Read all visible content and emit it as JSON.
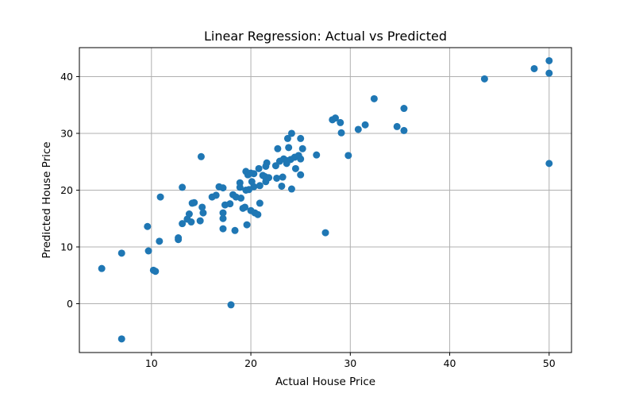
{
  "chart_data": {
    "type": "scatter",
    "title": "Linear Regression: Actual vs Predicted",
    "xlabel": "Actual House Price",
    "ylabel": "Predicted House Price",
    "xlim": [
      2.75,
      52.25
    ],
    "ylim": [
      -8.6,
      45.1
    ],
    "xticks": [
      10,
      20,
      30,
      40,
      50
    ],
    "yticks": [
      0,
      10,
      20,
      30,
      40
    ],
    "grid": true,
    "color": "#1f77b4",
    "points": [
      [
        5.0,
        6.2
      ],
      [
        7.0,
        8.9
      ],
      [
        7.0,
        -6.2
      ],
      [
        9.6,
        13.6
      ],
      [
        9.7,
        9.3
      ],
      [
        10.2,
        5.9
      ],
      [
        10.4,
        5.7
      ],
      [
        10.8,
        11.0
      ],
      [
        10.9,
        18.8
      ],
      [
        12.7,
        11.3
      ],
      [
        12.7,
        11.6
      ],
      [
        13.1,
        14.1
      ],
      [
        13.1,
        20.5
      ],
      [
        13.6,
        14.9
      ],
      [
        13.8,
        15.8
      ],
      [
        14.0,
        14.4
      ],
      [
        14.1,
        17.7
      ],
      [
        14.3,
        17.8
      ],
      [
        14.9,
        14.6
      ],
      [
        15.0,
        25.9
      ],
      [
        15.1,
        17.0
      ],
      [
        15.2,
        16.0
      ],
      [
        16.1,
        18.8
      ],
      [
        16.5,
        19.1
      ],
      [
        16.8,
        20.6
      ],
      [
        17.2,
        20.4
      ],
      [
        17.2,
        16.0
      ],
      [
        17.2,
        15.0
      ],
      [
        17.2,
        13.2
      ],
      [
        17.4,
        17.4
      ],
      [
        17.9,
        17.6
      ],
      [
        18.0,
        -0.2
      ],
      [
        18.2,
        19.2
      ],
      [
        18.4,
        12.9
      ],
      [
        18.5,
        18.8
      ],
      [
        18.9,
        21.3
      ],
      [
        18.9,
        20.5
      ],
      [
        19.0,
        18.6
      ],
      [
        19.2,
        16.8
      ],
      [
        19.4,
        17.0
      ],
      [
        19.5,
        23.3
      ],
      [
        19.5,
        20.0
      ],
      [
        19.6,
        13.9
      ],
      [
        19.7,
        22.7
      ],
      [
        19.8,
        20.1
      ],
      [
        20.0,
        23.0
      ],
      [
        20.0,
        16.4
      ],
      [
        20.1,
        21.5
      ],
      [
        20.3,
        20.6
      ],
      [
        20.3,
        22.9
      ],
      [
        20.4,
        16.0
      ],
      [
        20.7,
        15.7
      ],
      [
        20.8,
        23.8
      ],
      [
        20.9,
        17.7
      ],
      [
        20.9,
        20.8
      ],
      [
        21.2,
        22.6
      ],
      [
        21.4,
        22.4
      ],
      [
        21.5,
        24.2
      ],
      [
        21.5,
        21.5
      ],
      [
        21.6,
        24.8
      ],
      [
        21.8,
        22.2
      ],
      [
        22.5,
        24.3
      ],
      [
        22.6,
        22.1
      ],
      [
        22.7,
        27.3
      ],
      [
        22.9,
        25.1
      ],
      [
        23.1,
        20.7
      ],
      [
        23.2,
        22.3
      ],
      [
        23.3,
        25.5
      ],
      [
        23.6,
        24.7
      ],
      [
        23.6,
        25.2
      ],
      [
        23.7,
        29.1
      ],
      [
        23.8,
        27.5
      ],
      [
        24.0,
        25.4
      ],
      [
        24.1,
        30.0
      ],
      [
        24.1,
        20.2
      ],
      [
        24.4,
        25.8
      ],
      [
        24.5,
        23.8
      ],
      [
        24.8,
        26.1
      ],
      [
        25.0,
        25.5
      ],
      [
        25.0,
        29.1
      ],
      [
        25.0,
        22.7
      ],
      [
        25.2,
        27.3
      ],
      [
        26.6,
        26.2
      ],
      [
        27.5,
        12.5
      ],
      [
        28.2,
        32.4
      ],
      [
        28.5,
        32.7
      ],
      [
        29.0,
        31.9
      ],
      [
        29.1,
        30.1
      ],
      [
        29.8,
        26.1
      ],
      [
        30.8,
        30.7
      ],
      [
        31.5,
        31.5
      ],
      [
        32.4,
        36.1
      ],
      [
        34.7,
        31.2
      ],
      [
        35.4,
        34.4
      ],
      [
        35.4,
        30.5
      ],
      [
        43.5,
        39.6
      ],
      [
        48.5,
        41.4
      ],
      [
        50.0,
        42.8
      ],
      [
        50.0,
        40.6
      ],
      [
        50.0,
        24.7
      ]
    ]
  }
}
